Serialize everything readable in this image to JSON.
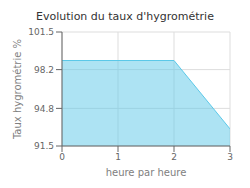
{
  "chart_data": {
    "type": "area",
    "title": "Evolution du taux d'hygrométrie",
    "xlabel": "heure par heure",
    "ylabel": "Taux hygrométrie %",
    "x": [
      0,
      2,
      3
    ],
    "values": [
      99.0,
      99.0,
      93.0
    ],
    "xlim": [
      0,
      3
    ],
    "ylim": [
      91.5,
      101.5
    ],
    "xticks": [
      0,
      1,
      2,
      3
    ],
    "yticks": [
      91.5,
      94.8,
      98.2,
      101.5
    ],
    "color": "#5bc8e8",
    "grid": true
  }
}
